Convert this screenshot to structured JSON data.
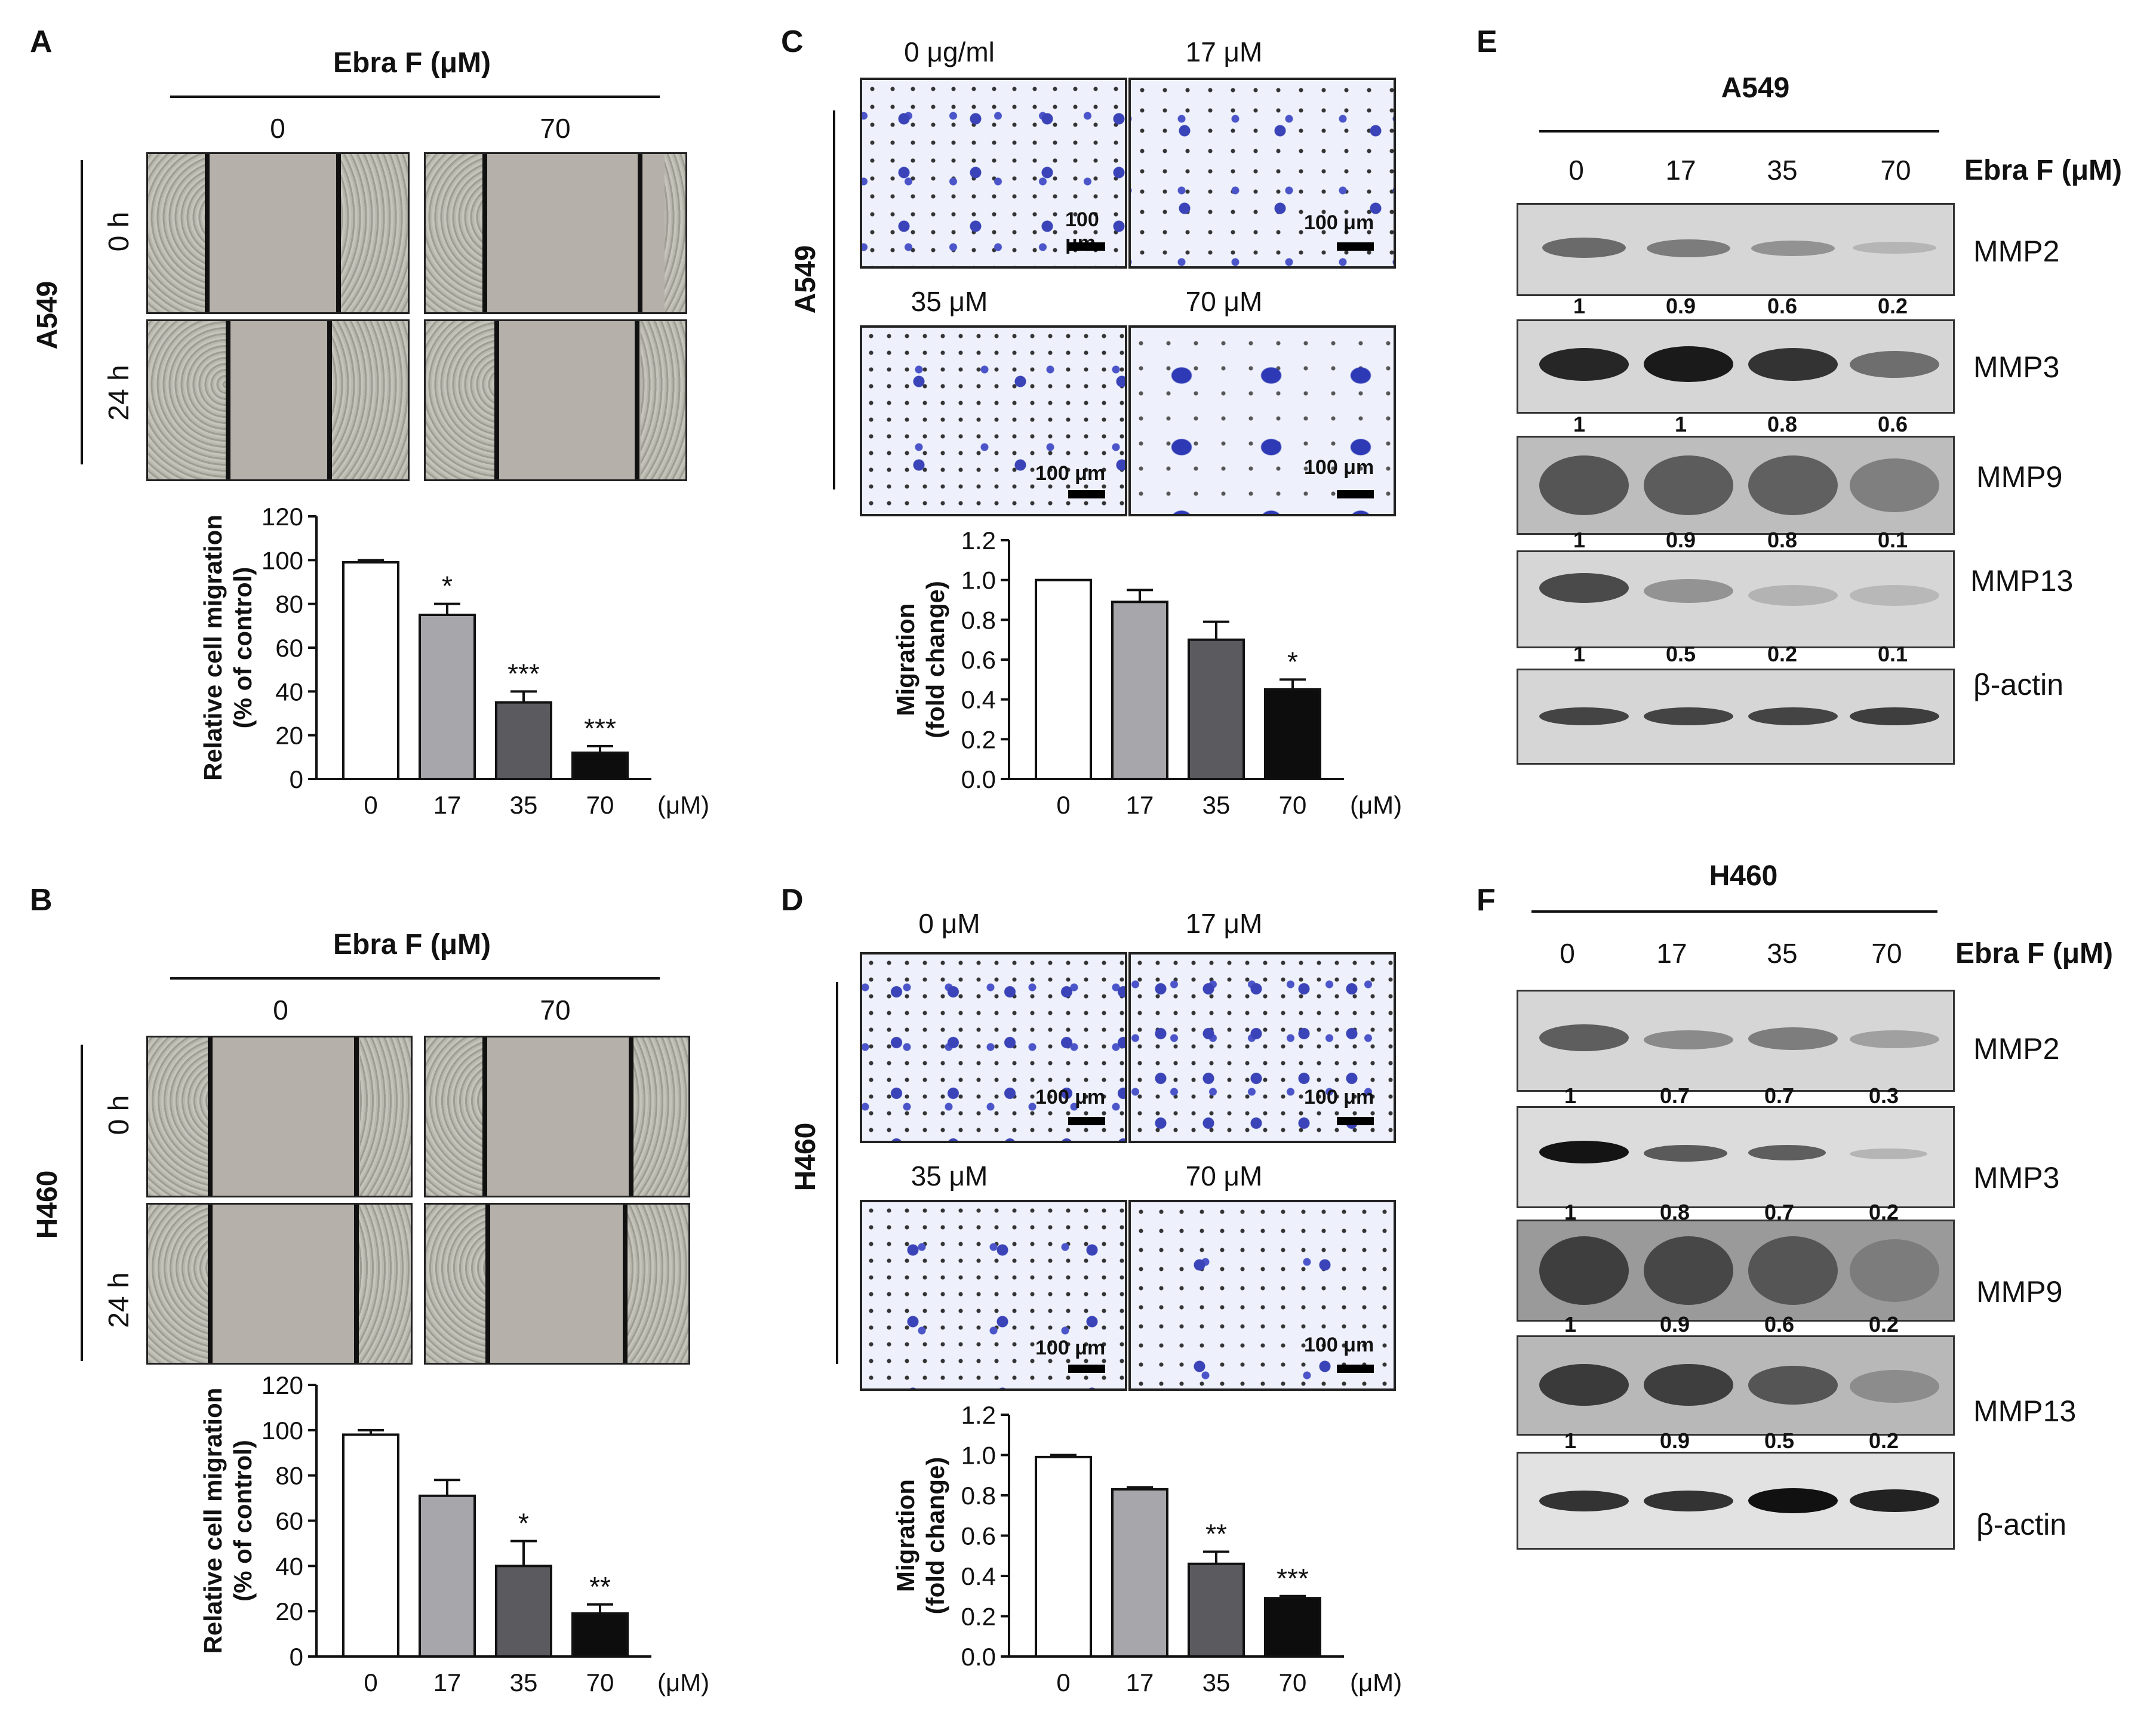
{
  "panels": {
    "A": "A",
    "B": "B",
    "C": "C",
    "D": "D",
    "E": "E",
    "F": "F"
  },
  "woundA": {
    "header": "Ebra F (μM)",
    "cols": [
      "0",
      "70"
    ],
    "rows": [
      "0 h",
      "24 h"
    ],
    "cell_line": "A549"
  },
  "woundB": {
    "header": "Ebra F (μM)",
    "cols": [
      "0",
      "70"
    ],
    "rows": [
      "0 h",
      "24 h"
    ],
    "cell_line": "H460"
  },
  "transC": {
    "cell_line": "A549",
    "labels": [
      "0 μg/ml",
      "17 μM",
      "35 μM",
      "70 μM"
    ],
    "scale": "100 μm"
  },
  "transD": {
    "cell_line": "H460",
    "labels": [
      "0 μM",
      "17 μM",
      "35 μM",
      "70 μM"
    ],
    "scale": "100 μm"
  },
  "blotE": {
    "title": "A549",
    "doses": [
      "0",
      "17",
      "35",
      "70"
    ],
    "treatment": "Ebra F (μM)",
    "proteins": [
      {
        "name": "MMP2",
        "values": [
          "1",
          "0.9",
          "0.6",
          "0.2"
        ]
      },
      {
        "name": "MMP3",
        "values": [
          "1",
          "1",
          "0.8",
          "0.6"
        ]
      },
      {
        "name": "MMP9",
        "values": [
          "1",
          "0.9",
          "0.8",
          "0.1"
        ]
      },
      {
        "name": "MMP13",
        "values": [
          "1",
          "0.5",
          "0.2",
          "0.1"
        ]
      },
      {
        "name": "β-actin",
        "values": []
      }
    ]
  },
  "blotF": {
    "title": "H460",
    "doses": [
      "0",
      "17",
      "35",
      "70"
    ],
    "treatment": "Ebra F (μM)",
    "proteins": [
      {
        "name": "MMP2",
        "values": [
          "1",
          "0.7",
          "0.7",
          "0.3"
        ]
      },
      {
        "name": "MMP3",
        "values": [
          "1",
          "0.8",
          "0.7",
          "0.2"
        ]
      },
      {
        "name": "MMP9",
        "values": [
          "1",
          "0.9",
          "0.6",
          "0.2"
        ]
      },
      {
        "name": "MMP13",
        "values": [
          "1",
          "0.9",
          "0.5",
          "0.2"
        ]
      },
      {
        "name": "β-actin",
        "values": []
      }
    ]
  },
  "chart_data": [
    {
      "id": "A",
      "type": "bar",
      "categories": [
        "0",
        "17",
        "35",
        "70"
      ],
      "values": [
        99,
        75,
        35,
        12
      ],
      "errors": [
        1,
        5,
        5,
        3
      ],
      "significance": [
        "",
        "*",
        "***",
        "***"
      ],
      "ylabel": "Relative cell migration\n(% of control)",
      "xunit": "(μM)",
      "ylim": [
        0,
        120
      ],
      "yticks": [
        "0",
        "20",
        "40",
        "60",
        "80",
        "100",
        "120"
      ],
      "colors": [
        "#ffffff",
        "#a7a7ab",
        "#5b5b5f",
        "#0d0d0d"
      ]
    },
    {
      "id": "B",
      "type": "bar",
      "categories": [
        "0",
        "17",
        "35",
        "70"
      ],
      "values": [
        98,
        71,
        40,
        19
      ],
      "errors": [
        2,
        7,
        11,
        4
      ],
      "significance": [
        "",
        "",
        "*",
        "**"
      ],
      "ylabel": "Relative cell migration\n(% of control)",
      "xunit": "(μM)",
      "ylim": [
        0,
        120
      ],
      "yticks": [
        "0",
        "20",
        "40",
        "60",
        "80",
        "100",
        "120"
      ],
      "colors": [
        "#ffffff",
        "#a7a7ab",
        "#5b5b5f",
        "#0d0d0d"
      ]
    },
    {
      "id": "C",
      "type": "bar",
      "categories": [
        "0",
        "17",
        "35",
        "70"
      ],
      "values": [
        1.0,
        0.89,
        0.7,
        0.45
      ],
      "errors": [
        0,
        0.06,
        0.09,
        0.05
      ],
      "significance": [
        "",
        "",
        "",
        "*"
      ],
      "ylabel": "Migration\n(fold change)",
      "xunit": "(μM)",
      "ylim": [
        0,
        1.2
      ],
      "yticks": [
        "0.0",
        "0.2",
        "0.4",
        "0.6",
        "0.8",
        "1.0",
        "1.2"
      ],
      "colors": [
        "#ffffff",
        "#a7a7ab",
        "#5b5b5f",
        "#0d0d0d"
      ]
    },
    {
      "id": "D",
      "type": "bar",
      "categories": [
        "0",
        "17",
        "35",
        "70"
      ],
      "values": [
        0.99,
        0.83,
        0.46,
        0.29
      ],
      "errors": [
        0.01,
        0.01,
        0.06,
        0.01
      ],
      "significance": [
        "",
        "",
        "**",
        "***"
      ],
      "ylabel": "Migration\n(fold change)",
      "xunit": "(μM)",
      "ylim": [
        0,
        1.2
      ],
      "yticks": [
        "0.0",
        "0.2",
        "0.4",
        "0.6",
        "0.8",
        "1.0",
        "1.2"
      ],
      "colors": [
        "#ffffff",
        "#a7a7ab",
        "#5b5b5f",
        "#0d0d0d"
      ]
    }
  ]
}
